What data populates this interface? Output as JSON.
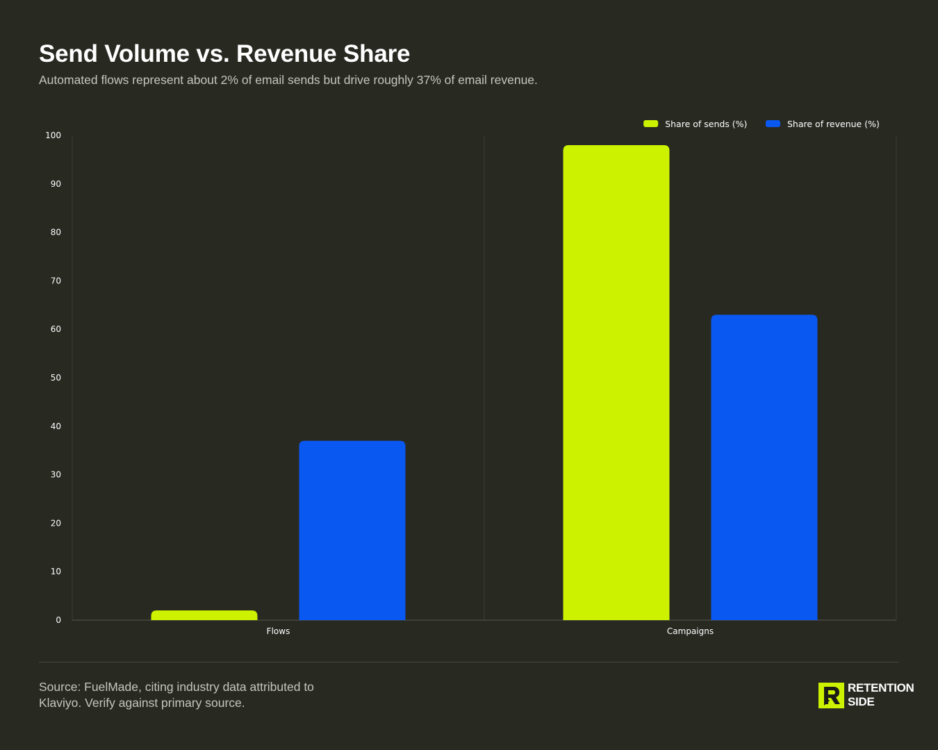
{
  "title": "Send Volume vs. Revenue Share",
  "subtitle": "Automated flows represent about 2% of email sends but drive roughly 37% of email revenue.",
  "source_line1": "Source: FuelMade, citing industry data attributed to",
  "source_line2": "Klaviyo. Verify against primary source.",
  "logo": {
    "line1": "RETENTION",
    "line2": "SIDE"
  },
  "colors": {
    "background": "#282a22",
    "sends": "#ccf200",
    "revenue": "#0a58f2",
    "grid": "#3b3d35",
    "text": "#ffffff",
    "muted": "#c5c6bd"
  },
  "chart_data": {
    "type": "bar",
    "categories": [
      "Flows",
      "Campaigns"
    ],
    "series": [
      {
        "name": "Share of sends (%)",
        "values": [
          2,
          98
        ],
        "color": "#ccf200"
      },
      {
        "name": "Share of revenue (%)",
        "values": [
          37,
          63
        ],
        "color": "#0a58f2"
      }
    ],
    "ylim": [
      0,
      100
    ],
    "yticks": [
      0,
      10,
      20,
      30,
      40,
      50,
      60,
      70,
      80,
      90,
      100
    ],
    "legend": "top-right",
    "grid": false
  }
}
